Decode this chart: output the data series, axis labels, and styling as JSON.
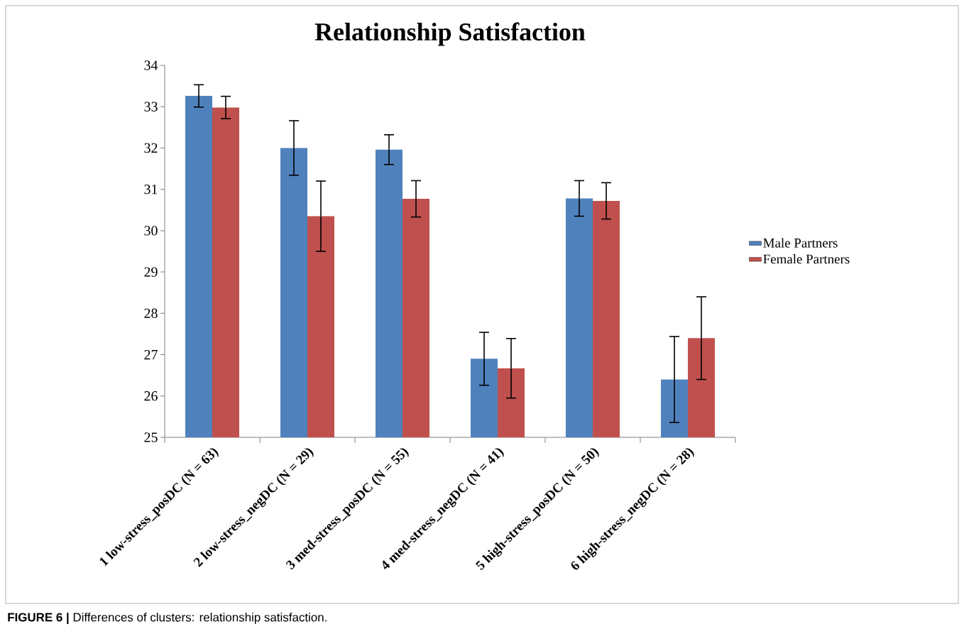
{
  "chart_data": {
    "type": "bar",
    "title": "Relationship Satisfaction",
    "categories": [
      "1 low-stress_posDC (N = 63)",
      "2 low-stress_negDC (N = 29)",
      "3 med-stress_posDC (N = 55)",
      "4 med-stress_negDC (N = 41)",
      "5 high-stress_posDC (N = 50)",
      "6 high-stress_negDC (N = 28)"
    ],
    "series": [
      {
        "name": "Male Partners",
        "color": "#4f81bd",
        "values": [
          33.26,
          32.0,
          31.96,
          26.9,
          30.78,
          26.4
        ],
        "errors": [
          0.27,
          0.66,
          0.36,
          0.64,
          0.43,
          1.04
        ]
      },
      {
        "name": "Female Partners",
        "color": "#c0504d",
        "values": [
          32.98,
          30.35,
          30.77,
          26.67,
          30.72,
          27.4
        ],
        "errors": [
          0.27,
          0.85,
          0.44,
          0.72,
          0.44,
          1.0
        ]
      }
    ],
    "ylim": [
      25,
      34
    ],
    "yticks": [
      25,
      26,
      27,
      28,
      29,
      30,
      31,
      32,
      33,
      34
    ],
    "legend": "right",
    "annotations": [
      "**FIGURE 6 |** Differences of clusters: relationship satisfaction."
    ]
  }
}
